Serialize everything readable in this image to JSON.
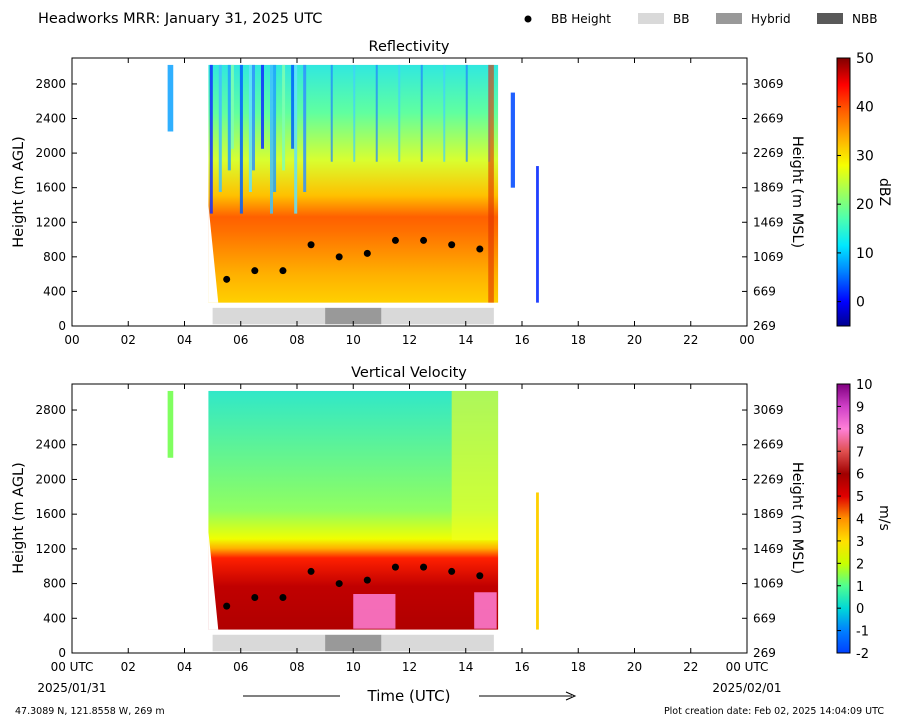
{
  "header": {
    "title": "Headworks MRR:  January 31, 2025 UTC",
    "legend": [
      {
        "label": "BB Height",
        "kind": "marker",
        "color": "#000000"
      },
      {
        "label": "BB",
        "kind": "swatch",
        "color": "#d9d9d9"
      },
      {
        "label": "Hybrid",
        "kind": "swatch",
        "color": "#999999"
      },
      {
        "label": "NBB",
        "kind": "swatch",
        "color": "#595959"
      }
    ]
  },
  "footer": {
    "location": "47.3089 N, 121.8558 W, 269 m",
    "created": "Plot creation date: Feb 02, 2025 14:04:09 UTC",
    "xlabel": "Time (UTC)",
    "start_date": "2025/01/31",
    "end_date": "2025/02/01"
  },
  "chart_data": [
    {
      "type": "heatmap",
      "title": "Reflectivity",
      "ylabel": "Height (m AGL)",
      "ylabel_right": "Height (m MSL)",
      "xlim": [
        0,
        24
      ],
      "ylim": [
        0,
        3100
      ],
      "x_ticks": [
        "00",
        "02",
        "04",
        "06",
        "08",
        "10",
        "12",
        "14",
        "16",
        "18",
        "20",
        "22",
        "00"
      ],
      "y_ticks": [
        0,
        400,
        800,
        1200,
        1600,
        2000,
        2400,
        2800
      ],
      "y_ticks_right": [
        "269",
        "669",
        "1069",
        "1469",
        "1869",
        "2269",
        "2669",
        "3069"
      ],
      "colorbar": {
        "label": "dBZ",
        "range": [
          -5,
          50
        ],
        "ticks": [
          0,
          10,
          20,
          30,
          40,
          50
        ]
      },
      "bb_height": {
        "x": [
          5.5,
          6.5,
          7.5,
          8.5,
          9.5,
          10.5,
          11.5,
          12.5,
          13.5,
          14.5
        ],
        "y": [
          540,
          640,
          640,
          940,
          800,
          840,
          990,
          990,
          940,
          890
        ]
      },
      "bb_type": [
        {
          "type": "BB",
          "start": 5.0,
          "end": 9.0
        },
        {
          "type": "Hybrid",
          "start": 9.0,
          "end": 11.0
        },
        {
          "type": "BB",
          "start": 11.0,
          "end": 15.0
        }
      ]
    },
    {
      "type": "heatmap",
      "title": "Vertical Velocity",
      "ylabel": "Height (m AGL)",
      "ylabel_right": "Height (m MSL)",
      "xlim": [
        0,
        24
      ],
      "ylim": [
        0,
        3100
      ],
      "x_ticks": [
        "00 UTC",
        "02",
        "04",
        "06",
        "08",
        "10",
        "12",
        "14",
        "16",
        "18",
        "20",
        "22",
        "00 UTC"
      ],
      "y_ticks": [
        0,
        400,
        800,
        1200,
        1600,
        2000,
        2400,
        2800
      ],
      "y_ticks_right": [
        "269",
        "669",
        "1069",
        "1469",
        "1869",
        "2269",
        "2669",
        "3069"
      ],
      "colorbar": {
        "label": "m/s",
        "range": [
          -2,
          10
        ],
        "ticks": [
          -2,
          -1,
          0,
          1,
          2,
          3,
          4,
          5,
          6,
          7,
          8,
          9,
          10
        ]
      },
      "bb_height": {
        "x": [
          5.5,
          6.5,
          7.5,
          8.5,
          9.5,
          10.5,
          11.5,
          12.5,
          13.5,
          14.5
        ],
        "y": [
          540,
          640,
          640,
          940,
          800,
          840,
          990,
          990,
          940,
          890
        ]
      },
      "bb_type": [
        {
          "type": "BB",
          "start": 5.0,
          "end": 9.0
        },
        {
          "type": "Hybrid",
          "start": 9.0,
          "end": 11.0
        },
        {
          "type": "BB",
          "start": 11.0,
          "end": 15.0
        }
      ]
    }
  ]
}
